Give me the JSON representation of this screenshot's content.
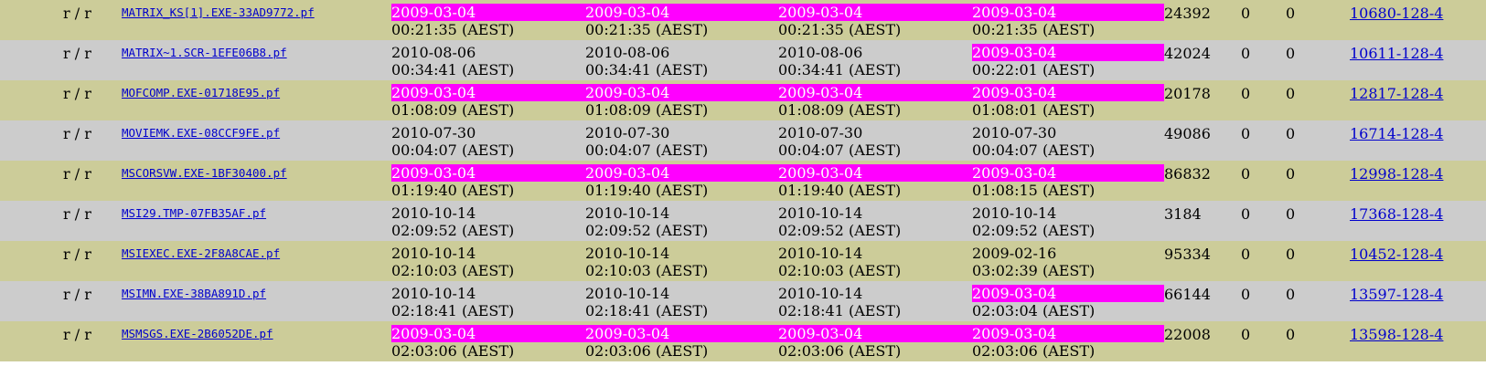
{
  "highlight_color": "#ff00ff",
  "row_colors": {
    "odd": "#cccc99",
    "even": "#cccccc"
  },
  "rows": [
    {
      "type": "r / r",
      "name": "MATRIX_KS[1].EXE-33AD9772.pf",
      "times": [
        {
          "date": "2009-03-04",
          "time": "00:21:35 (AEST)",
          "highlight": true
        },
        {
          "date": "2009-03-04",
          "time": "00:21:35 (AEST)",
          "highlight": true
        },
        {
          "date": "2009-03-04",
          "time": "00:21:35 (AEST)",
          "highlight": true
        },
        {
          "date": "2009-03-04",
          "time": "00:21:35 (AEST)",
          "highlight": true
        }
      ],
      "size": "24392",
      "uid": "0",
      "gid": "0",
      "meta": "10680-128-4"
    },
    {
      "type": "r / r",
      "name": "MATRIX~1.SCR-1EFE06B8.pf",
      "times": [
        {
          "date": "2010-08-06",
          "time": "00:34:41 (AEST)",
          "highlight": false
        },
        {
          "date": "2010-08-06",
          "time": "00:34:41 (AEST)",
          "highlight": false
        },
        {
          "date": "2010-08-06",
          "time": "00:34:41 (AEST)",
          "highlight": false
        },
        {
          "date": "2009-03-04",
          "time": "00:22:01 (AEST)",
          "highlight": true
        }
      ],
      "size": "42024",
      "uid": "0",
      "gid": "0",
      "meta": "10611-128-4"
    },
    {
      "type": "r / r",
      "name": "MOFCOMP.EXE-01718E95.pf",
      "times": [
        {
          "date": "2009-03-04",
          "time": "01:08:09 (AEST)",
          "highlight": true
        },
        {
          "date": "2009-03-04",
          "time": "01:08:09 (AEST)",
          "highlight": true
        },
        {
          "date": "2009-03-04",
          "time": "01:08:09 (AEST)",
          "highlight": true
        },
        {
          "date": "2009-03-04",
          "time": "01:08:01 (AEST)",
          "highlight": true
        }
      ],
      "size": "20178",
      "uid": "0",
      "gid": "0",
      "meta": "12817-128-4"
    },
    {
      "type": "r / r",
      "name": "MOVIEMK.EXE-08CCF9FE.pf",
      "times": [
        {
          "date": "2010-07-30",
          "time": "00:04:07 (AEST)",
          "highlight": false
        },
        {
          "date": "2010-07-30",
          "time": "00:04:07 (AEST)",
          "highlight": false
        },
        {
          "date": "2010-07-30",
          "time": "00:04:07 (AEST)",
          "highlight": false
        },
        {
          "date": "2010-07-30",
          "time": "00:04:07 (AEST)",
          "highlight": false
        }
      ],
      "size": "49086",
      "uid": "0",
      "gid": "0",
      "meta": "16714-128-4"
    },
    {
      "type": "r / r",
      "name": "MSCORSVW.EXE-1BF30400.pf",
      "times": [
        {
          "date": "2009-03-04",
          "time": "01:19:40 (AEST)",
          "highlight": true
        },
        {
          "date": "2009-03-04",
          "time": "01:19:40 (AEST)",
          "highlight": true
        },
        {
          "date": "2009-03-04",
          "time": "01:19:40 (AEST)",
          "highlight": true
        },
        {
          "date": "2009-03-04",
          "time": "01:08:15 (AEST)",
          "highlight": true
        }
      ],
      "size": "86832",
      "uid": "0",
      "gid": "0",
      "meta": "12998-128-4"
    },
    {
      "type": "r / r",
      "name": "MSI29.TMP-07FB35AF.pf",
      "times": [
        {
          "date": "2010-10-14",
          "time": "02:09:52 (AEST)",
          "highlight": false
        },
        {
          "date": "2010-10-14",
          "time": "02:09:52 (AEST)",
          "highlight": false
        },
        {
          "date": "2010-10-14",
          "time": "02:09:52 (AEST)",
          "highlight": false
        },
        {
          "date": "2010-10-14",
          "time": "02:09:52 (AEST)",
          "highlight": false
        }
      ],
      "size": "3184",
      "uid": "0",
      "gid": "0",
      "meta": "17368-128-4"
    },
    {
      "type": "r / r",
      "name": "MSIEXEC.EXE-2F8A8CAE.pf",
      "times": [
        {
          "date": "2010-10-14",
          "time": "02:10:03 (AEST)",
          "highlight": false
        },
        {
          "date": "2010-10-14",
          "time": "02:10:03 (AEST)",
          "highlight": false
        },
        {
          "date": "2010-10-14",
          "time": "02:10:03 (AEST)",
          "highlight": false
        },
        {
          "date": "2009-02-16",
          "time": "03:02:39 (AEST)",
          "highlight": false
        }
      ],
      "size": "95334",
      "uid": "0",
      "gid": "0",
      "meta": "10452-128-4"
    },
    {
      "type": "r / r",
      "name": "MSIMN.EXE-38BA891D.pf",
      "times": [
        {
          "date": "2010-10-14",
          "time": "02:18:41 (AEST)",
          "highlight": false
        },
        {
          "date": "2010-10-14",
          "time": "02:18:41 (AEST)",
          "highlight": false
        },
        {
          "date": "2010-10-14",
          "time": "02:18:41 (AEST)",
          "highlight": false
        },
        {
          "date": "2009-03-04",
          "time": "02:03:04 (AEST)",
          "highlight": true
        }
      ],
      "size": "66144",
      "uid": "0",
      "gid": "0",
      "meta": "13597-128-4"
    },
    {
      "type": "r / r",
      "name": "MSMSGS.EXE-2B6052DE.pf",
      "times": [
        {
          "date": "2009-03-04",
          "time": "02:03:06 (AEST)",
          "highlight": true
        },
        {
          "date": "2009-03-04",
          "time": "02:03:06 (AEST)",
          "highlight": true
        },
        {
          "date": "2009-03-04",
          "time": "02:03:06 (AEST)",
          "highlight": true
        },
        {
          "date": "2009-03-04",
          "time": "02:03:06 (AEST)",
          "highlight": true
        }
      ],
      "size": "22008",
      "uid": "0",
      "gid": "0",
      "meta": "13598-128-4"
    }
  ]
}
